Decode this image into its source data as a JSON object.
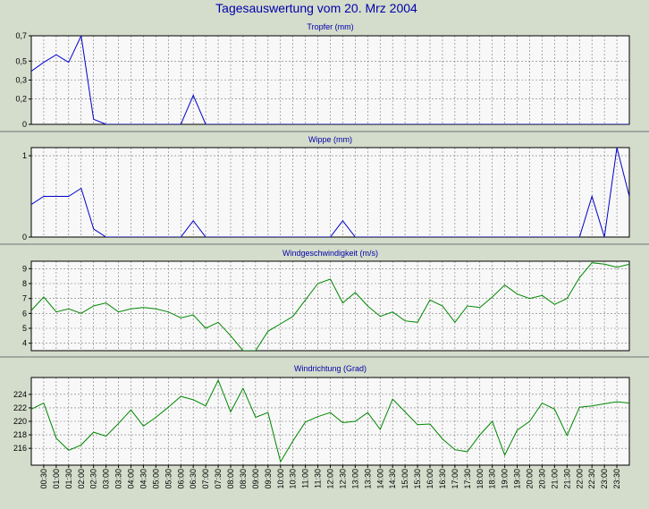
{
  "page": {
    "title": "Tagesauswertung vom 20. Mrz 2004"
  },
  "colors": {
    "background": "#d4dccb",
    "plot_background": "#f8f8f8",
    "title_color": "#0000aa",
    "blue_series": "#0000cc",
    "green_series": "#008800",
    "grid": "#777777",
    "separator": "#a0a8a0"
  },
  "x_ticks": [
    "00:30",
    "01:00",
    "01:30",
    "02:00",
    "02:30",
    "03:00",
    "03:30",
    "04:00",
    "04:30",
    "05:00",
    "05:30",
    "06:00",
    "06:30",
    "07:00",
    "07:30",
    "08:00",
    "08:30",
    "09:00",
    "09:30",
    "10:00",
    "10:30",
    "11:00",
    "11:30",
    "12:00",
    "12:30",
    "13:00",
    "13:30",
    "14:00",
    "14:30",
    "15:00",
    "15:30",
    "16:00",
    "16:30",
    "17:00",
    "17:30",
    "18:00",
    "18:30",
    "19:00",
    "19:30",
    "20:00",
    "20:30",
    "21:00",
    "21:30",
    "22:00",
    "22:30",
    "23:00",
    "23:30"
  ],
  "chart_data": [
    {
      "type": "line",
      "title": "Tropfer (mm)",
      "ylim": [
        0,
        0.7
      ],
      "yticks": [
        "0",
        "0,2",
        "0,3",
        "0,5",
        "0,7"
      ],
      "ytick_values": [
        0,
        0.2,
        0.35,
        0.5,
        0.7
      ],
      "grid": true,
      "color": "#0000cc",
      "x": [
        0,
        0.5,
        1,
        1.5,
        2,
        2.5,
        3,
        3.5,
        4,
        4.5,
        5,
        5.5,
        6,
        6.5,
        7,
        7.5,
        8,
        8.5,
        9,
        9.5,
        10,
        10.5,
        11,
        11.5,
        12,
        12.5,
        13,
        13.5,
        14,
        14.5,
        15,
        15.5,
        16,
        16.5,
        17,
        17.5,
        18,
        18.5,
        19,
        19.5,
        20,
        20.5,
        21,
        21.5,
        22,
        22.5,
        23,
        23.5,
        24
      ],
      "values": [
        0.42,
        0.49,
        0.55,
        0.49,
        0.7,
        0.04,
        0,
        0,
        0,
        0,
        0,
        0,
        0,
        0.23,
        0,
        0,
        0,
        0,
        0,
        0,
        0,
        0,
        0,
        0,
        0,
        0,
        0,
        0,
        0,
        0,
        0,
        0,
        0,
        0,
        0,
        0,
        0,
        0,
        0,
        0,
        0,
        0,
        0,
        0,
        0,
        0,
        0,
        0,
        0
      ]
    },
    {
      "type": "line",
      "title": "Wippe (mm)",
      "ylim": [
        0,
        1.1
      ],
      "yticks": [
        "0",
        "1"
      ],
      "ytick_values": [
        0,
        1
      ],
      "grid": true,
      "color": "#0000cc",
      "x": [
        0,
        0.5,
        1,
        1.5,
        2,
        2.5,
        3,
        3.5,
        4,
        4.5,
        5,
        5.5,
        6,
        6.5,
        7,
        7.5,
        8,
        8.5,
        9,
        9.5,
        10,
        10.5,
        11,
        11.5,
        12,
        12.5,
        13,
        13.5,
        14,
        14.5,
        15,
        15.5,
        16,
        16.5,
        17,
        17.5,
        18,
        18.5,
        19,
        19.5,
        20,
        20.5,
        21,
        21.5,
        22,
        22.5,
        23,
        23.5,
        24
      ],
      "values": [
        0.4,
        0.5,
        0.5,
        0.5,
        0.6,
        0.1,
        0,
        0,
        0,
        0,
        0,
        0,
        0,
        0.2,
        0,
        0,
        0,
        0,
        0,
        0,
        0,
        0,
        0,
        0,
        0,
        0.2,
        0,
        0,
        0,
        0,
        0,
        0,
        0,
        0,
        0,
        0,
        0,
        0,
        0,
        0,
        0,
        0,
        0,
        0,
        0,
        0.5,
        0,
        1.1,
        0.5
      ]
    },
    {
      "type": "line",
      "title": "Windgeschwindigkeit (m/s)",
      "ylim": [
        3.5,
        9.5
      ],
      "yticks": [
        "4",
        "5",
        "6",
        "7",
        "8",
        "9"
      ],
      "ytick_values": [
        4,
        5,
        6,
        7,
        8,
        9
      ],
      "grid": true,
      "color": "#008800",
      "x": [
        0,
        0.5,
        1,
        1.5,
        2,
        2.5,
        3,
        3.5,
        4,
        4.5,
        5,
        5.5,
        6,
        6.5,
        7,
        7.5,
        8,
        8.5,
        9,
        9.5,
        10,
        10.5,
        11,
        11.5,
        12,
        12.5,
        13,
        13.5,
        14,
        14.5,
        15,
        15.5,
        16,
        16.5,
        17,
        17.5,
        18,
        18.5,
        19,
        19.5,
        20,
        20.5,
        21,
        21.5,
        22,
        22.5,
        23,
        23.5,
        24
      ],
      "values": [
        6.2,
        7.1,
        6.1,
        6.3,
        6.0,
        6.5,
        6.7,
        6.1,
        6.3,
        6.4,
        6.3,
        6.1,
        5.7,
        5.9,
        5.0,
        5.4,
        4.5,
        3.5,
        3.5,
        4.8,
        5.3,
        5.8,
        6.9,
        8.0,
        8.3,
        6.7,
        7.4,
        6.5,
        5.8,
        6.1,
        5.5,
        5.4,
        6.9,
        6.5,
        5.4,
        6.5,
        6.4,
        7.1,
        7.9,
        7.3,
        7.0,
        7.2,
        6.6,
        7.0,
        8.4,
        9.4,
        9.3,
        9.1,
        9.3
      ]
    },
    {
      "type": "line",
      "title": "Windrichtung (Grad)",
      "ylim": [
        213.5,
        226.5
      ],
      "yticks": [
        "216",
        "218",
        "220",
        "222",
        "224"
      ],
      "ytick_values": [
        216,
        218,
        220,
        222,
        224
      ],
      "grid": true,
      "color": "#008800",
      "x": [
        0,
        0.5,
        1,
        1.5,
        2,
        2.5,
        3,
        3.5,
        4,
        4.5,
        5,
        5.5,
        6,
        6.5,
        7,
        7.5,
        8,
        8.5,
        9,
        9.5,
        10,
        10.5,
        11,
        11.5,
        12,
        12.5,
        13,
        13.5,
        14,
        14.5,
        15,
        15.5,
        16,
        16.5,
        17,
        17.5,
        18,
        18.5,
        19,
        19.5,
        20,
        20.5,
        21,
        21.5,
        22,
        22.5,
        23,
        23.5,
        24
      ],
      "values": [
        221.8,
        222.7,
        217.5,
        215.7,
        216.5,
        218.4,
        217.8,
        219.7,
        221.7,
        219.3,
        220.6,
        222.1,
        223.7,
        223.2,
        222.3,
        226.1,
        221.4,
        224.9,
        220.6,
        221.3,
        214.0,
        217.1,
        219.9,
        220.7,
        221.3,
        219.8,
        220.0,
        221.3,
        218.8,
        223.3,
        221.4,
        219.5,
        219.6,
        217.4,
        215.8,
        215.5,
        218.0,
        220.0,
        215.0,
        218.7,
        220.0,
        222.7,
        221.8,
        217.9,
        222.1,
        222.3,
        222.6,
        222.9,
        222.7
      ]
    }
  ]
}
